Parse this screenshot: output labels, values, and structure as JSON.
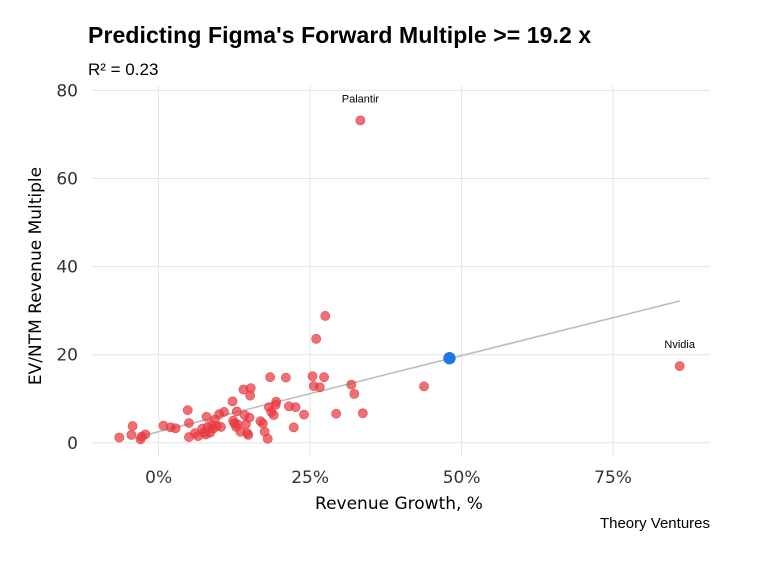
{
  "chart_data": {
    "type": "scatter",
    "title": "Predicting Figma's Forward Multiple >= 19.2 x",
    "subtitle": "R² = 0.23",
    "caption": "Theory Ventures",
    "xlabel": "Revenue Growth, %",
    "ylabel": "EV/NTM Revenue Multiple",
    "xlim": [
      -11,
      91
    ],
    "ylim": [
      -3,
      81
    ],
    "x_ticks": [
      0,
      25,
      50,
      75
    ],
    "x_tick_labels": [
      "0%",
      "25%",
      "50%",
      "75%"
    ],
    "y_ticks": [
      0,
      20,
      40,
      60,
      80
    ],
    "y_tick_labels": [
      "0",
      "20",
      "40",
      "60",
      "80"
    ],
    "grid": true,
    "colors": {
      "points": "#e8393f",
      "highlight": "#1f77e0",
      "trend": "#bdbdbd"
    },
    "trendline": {
      "x": [
        -3,
        86
      ],
      "y": [
        1.5,
        32.2
      ]
    },
    "highlight": {
      "x": 48,
      "y": 19.2
    },
    "annotations": [
      {
        "text": "Palantir",
        "x": 33.3,
        "y": 73.2
      },
      {
        "text": "Nvidia",
        "x": 86,
        "y": 17.4
      }
    ],
    "points": [
      [
        33.3,
        73.2
      ],
      [
        86,
        17.4
      ],
      [
        27.5,
        28.8
      ],
      [
        26,
        23.6
      ],
      [
        43.8,
        12.8
      ],
      [
        33.7,
        6.7
      ],
      [
        -6.5,
        1.2
      ],
      [
        -4.5,
        1.8
      ],
      [
        -4.3,
        3.8
      ],
      [
        -3,
        0.8
      ],
      [
        -2.2,
        1.9
      ],
      [
        -2.8,
        1.4
      ],
      [
        0.8,
        3.9
      ],
      [
        2,
        3.5
      ],
      [
        2.8,
        3.3
      ],
      [
        4.8,
        7.4
      ],
      [
        5,
        1.3
      ],
      [
        5,
        4.5
      ],
      [
        6,
        2.2
      ],
      [
        6.5,
        1.5
      ],
      [
        7.2,
        3.2
      ],
      [
        7.5,
        2.3
      ],
      [
        7.8,
        1.9
      ],
      [
        7.9,
        5.9
      ],
      [
        8.1,
        3.6
      ],
      [
        8.5,
        2.3
      ],
      [
        8.8,
        4.0
      ],
      [
        9.0,
        3.2
      ],
      [
        9.3,
        5.3
      ],
      [
        9.6,
        3.8
      ],
      [
        10.0,
        6.5
      ],
      [
        10.3,
        3.6
      ],
      [
        10.8,
        7.0
      ],
      [
        12.2,
        9.4
      ],
      [
        12.3,
        5.0
      ],
      [
        12.5,
        4.4
      ],
      [
        12.8,
        3.6
      ],
      [
        12.9,
        7.1
      ],
      [
        13.0,
        4.2
      ],
      [
        13.5,
        2.5
      ],
      [
        14.0,
        12.1
      ],
      [
        14.2,
        6.3
      ],
      [
        14.4,
        4.2
      ],
      [
        14.6,
        2.2
      ],
      [
        14.8,
        1.8
      ],
      [
        15.0,
        5.7
      ],
      [
        15.1,
        10.7
      ],
      [
        15.2,
        12.4
      ],
      [
        16.8,
        4.9
      ],
      [
        17.2,
        4.4
      ],
      [
        17.5,
        2.5
      ],
      [
        18.0,
        0.9
      ],
      [
        18.2,
        8.1
      ],
      [
        18.4,
        14.9
      ],
      [
        18.6,
        7.0
      ],
      [
        19.0,
        6.3
      ],
      [
        19.3,
        8.6
      ],
      [
        19.4,
        9.3
      ],
      [
        21.0,
        14.8
      ],
      [
        21.5,
        8.3
      ],
      [
        22.3,
        3.5
      ],
      [
        22.6,
        8.1
      ],
      [
        24.0,
        6.4
      ],
      [
        25.4,
        15.1
      ],
      [
        25.6,
        12.9
      ],
      [
        26.6,
        12.6
      ],
      [
        27.3,
        14.9
      ],
      [
        29.3,
        6.6
      ],
      [
        31.8,
        13.2
      ],
      [
        32.3,
        11.1
      ]
    ]
  }
}
